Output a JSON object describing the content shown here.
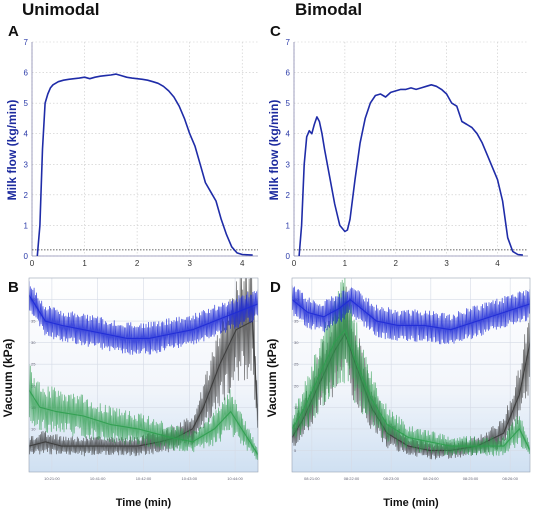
{
  "headings": {
    "left": "Unimodal",
    "right": "Bimodal"
  },
  "panel_letters": {
    "a": "A",
    "b": "B",
    "c": "C",
    "d": "D"
  },
  "chart_data": [
    {
      "id": "A",
      "type": "line",
      "title": "",
      "ylabel": "Milk flow (kg/min)",
      "xlabel": "",
      "xlim": [
        0,
        4.3
      ],
      "ylim": [
        0,
        7
      ],
      "xticks": [
        "0",
        "1",
        "2",
        "3",
        "4"
      ],
      "yticks": [
        "0",
        "1",
        "2",
        "3",
        "4",
        "5",
        "6",
        "7"
      ],
      "grid": true,
      "threshold": 0.2,
      "series": [
        {
          "color": "#1f2ca8",
          "x": [
            0.1,
            0.15,
            0.2,
            0.25,
            0.3,
            0.35,
            0.4,
            0.5,
            0.6,
            0.7,
            0.8,
            0.9,
            1.0,
            1.1,
            1.2,
            1.3,
            1.4,
            1.5,
            1.6,
            1.7,
            1.8,
            1.9,
            2.0,
            2.1,
            2.2,
            2.3,
            2.4,
            2.5,
            2.6,
            2.7,
            2.8,
            2.9,
            3.0,
            3.1,
            3.2,
            3.3,
            3.4,
            3.5,
            3.6,
            3.7,
            3.8,
            3.9,
            4.0,
            4.2
          ],
          "y": [
            0.0,
            1.0,
            3.5,
            5.0,
            5.3,
            5.5,
            5.6,
            5.7,
            5.75,
            5.78,
            5.8,
            5.82,
            5.85,
            5.8,
            5.85,
            5.88,
            5.9,
            5.92,
            5.95,
            5.9,
            5.85,
            5.82,
            5.8,
            5.78,
            5.75,
            5.7,
            5.65,
            5.55,
            5.4,
            5.2,
            4.9,
            4.5,
            4.0,
            3.6,
            3.0,
            2.4,
            2.1,
            1.8,
            1.2,
            0.7,
            0.3,
            0.1,
            0.05,
            0.03
          ]
        }
      ]
    },
    {
      "id": "C",
      "type": "line",
      "title": "",
      "ylabel": "Milk flow (kg/min)",
      "xlabel": "",
      "xlim": [
        0,
        4.6
      ],
      "ylim": [
        0,
        7
      ],
      "xticks": [
        "0",
        "1",
        "2",
        "3",
        "4"
      ],
      "yticks": [
        "0",
        "1",
        "2",
        "3",
        "4",
        "5",
        "6",
        "7"
      ],
      "grid": true,
      "threshold": 0.2,
      "series": [
        {
          "color": "#1f2ca8",
          "x": [
            0.1,
            0.15,
            0.2,
            0.25,
            0.3,
            0.35,
            0.4,
            0.45,
            0.5,
            0.55,
            0.6,
            0.7,
            0.8,
            0.9,
            1.0,
            1.05,
            1.1,
            1.2,
            1.3,
            1.4,
            1.5,
            1.6,
            1.7,
            1.8,
            1.9,
            2.0,
            2.1,
            2.2,
            2.3,
            2.4,
            2.5,
            2.6,
            2.7,
            2.8,
            2.9,
            3.0,
            3.1,
            3.2,
            3.3,
            3.4,
            3.5,
            3.6,
            3.7,
            3.8,
            3.9,
            4.0,
            4.1,
            4.2,
            4.3,
            4.4,
            4.5
          ],
          "y": [
            0.0,
            1.0,
            3.0,
            3.9,
            4.1,
            4.0,
            4.3,
            4.55,
            4.4,
            4.0,
            3.5,
            2.6,
            1.7,
            1.0,
            0.8,
            0.85,
            1.2,
            2.5,
            3.7,
            4.5,
            5.0,
            5.25,
            5.3,
            5.2,
            5.35,
            5.4,
            5.45,
            5.45,
            5.5,
            5.45,
            5.5,
            5.55,
            5.6,
            5.55,
            5.45,
            5.3,
            5.0,
            4.9,
            4.4,
            4.3,
            4.2,
            4.0,
            3.7,
            3.3,
            2.9,
            2.5,
            1.8,
            0.6,
            0.15,
            0.05,
            0.03
          ]
        }
      ]
    },
    {
      "id": "B",
      "type": "line",
      "title": "",
      "ylabel": "Vacuum (kPa)",
      "xlabel": "Time (min)",
      "xlim": [
        0,
        4.2
      ],
      "ylim": [
        0,
        45
      ],
      "yticks": [
        "5",
        "10",
        "15",
        "20",
        "25",
        "30",
        "35",
        "40"
      ],
      "xticks": [
        "10:21:00",
        "10:41:00",
        "10:42:00",
        "10:43:00",
        "10:44:00"
      ],
      "grid": true,
      "series": [
        {
          "color": "#1f2bd6",
          "x": [
            0,
            0.3,
            0.6,
            1.0,
            1.4,
            1.8,
            2.2,
            2.6,
            3.0,
            3.4,
            3.8,
            4.2
          ],
          "y": [
            41,
            35,
            34,
            33,
            32,
            31,
            31,
            32,
            33,
            35,
            37,
            39
          ]
        },
        {
          "color": "#2f9e4f",
          "x": [
            0,
            0.2,
            0.5,
            1.0,
            1.5,
            2.0,
            2.3,
            2.6,
            3.0,
            3.4,
            3.7,
            4.0,
            4.2
          ],
          "y": [
            19,
            15,
            14,
            13,
            11,
            10,
            9,
            8,
            7,
            10,
            14,
            8,
            4
          ]
        },
        {
          "color": "#3a3a3a",
          "x": [
            0,
            0.3,
            0.6,
            1.0,
            1.5,
            2.0,
            2.4,
            2.7,
            3.0,
            3.2,
            3.5,
            3.8,
            4.1,
            4.2
          ],
          "y": [
            6,
            7,
            6,
            6,
            6,
            6,
            7,
            8,
            10,
            15,
            25,
            33,
            35,
            12
          ]
        }
      ]
    },
    {
      "id": "D",
      "type": "line",
      "title": "",
      "ylabel": "Vacuum (kPa)",
      "xlabel": "Time (min)",
      "xlim": [
        0,
        4.5
      ],
      "ylim": [
        0,
        45
      ],
      "yticks": [
        "5",
        "10",
        "15",
        "20",
        "25",
        "30",
        "35",
        "40"
      ],
      "xticks": [
        "08:21:00",
        "08:22:00",
        "08:23:00",
        "08:24:00",
        "08:25:00",
        "08:26:00"
      ],
      "grid": true,
      "series": [
        {
          "color": "#1f2bd6",
          "x": [
            0,
            0.3,
            0.6,
            0.9,
            1.1,
            1.3,
            1.6,
            2.0,
            2.5,
            3.0,
            3.5,
            4.0,
            4.5
          ],
          "y": [
            40,
            37,
            36,
            38,
            40,
            38,
            35,
            34,
            34,
            33,
            35,
            37,
            39
          ]
        },
        {
          "color": "#2f9e4f",
          "x": [
            0,
            0.2,
            0.5,
            0.8,
            1.0,
            1.2,
            1.5,
            1.8,
            2.2,
            2.6,
            3.0,
            3.5,
            4.0,
            4.3,
            4.5
          ],
          "y": [
            10,
            14,
            22,
            30,
            33,
            26,
            17,
            11,
            8,
            7,
            6,
            6,
            6,
            10,
            5
          ]
        },
        {
          "color": "#3a3a3a",
          "x": [
            0,
            0.2,
            0.5,
            0.8,
            1.0,
            1.2,
            1.5,
            1.8,
            2.2,
            2.6,
            3.0,
            3.5,
            4.0,
            4.3,
            4.5
          ],
          "y": [
            8,
            12,
            20,
            28,
            32,
            25,
            15,
            9,
            6,
            5,
            5,
            6,
            9,
            18,
            30
          ]
        }
      ]
    }
  ]
}
